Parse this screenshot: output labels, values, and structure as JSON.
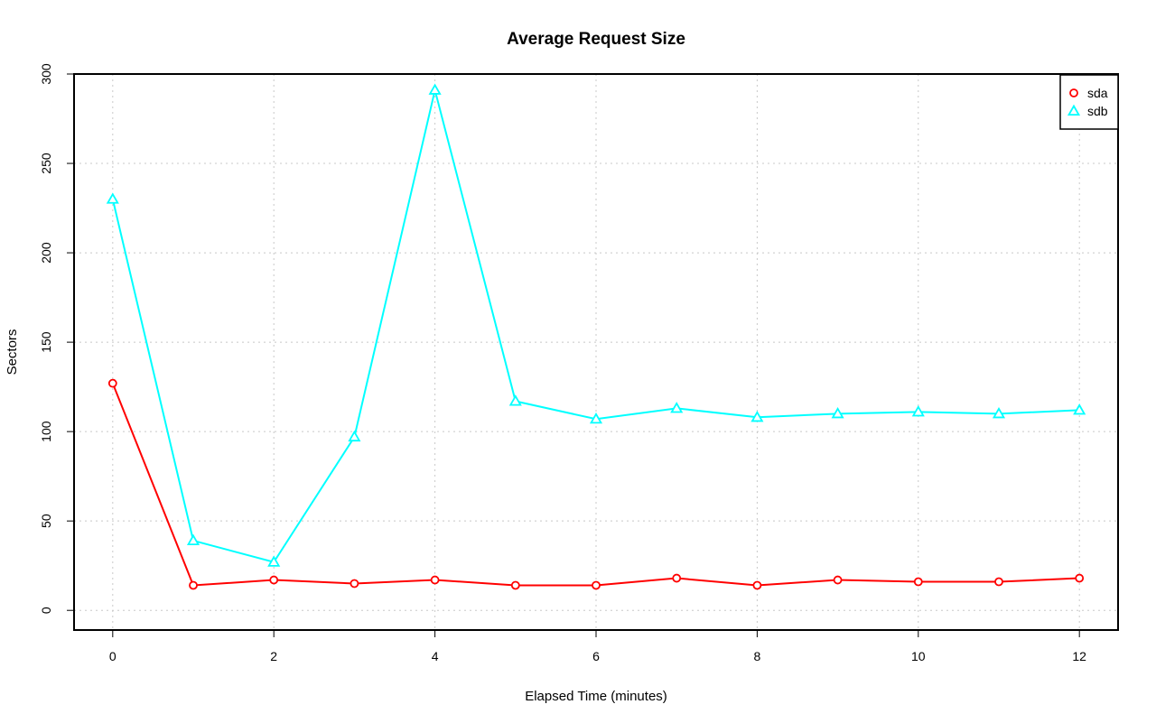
{
  "chart_data": {
    "type": "line",
    "title": "Average Request Size",
    "xlabel": "Elapsed Time (minutes)",
    "ylabel": "Sectors",
    "x": [
      0,
      1,
      2,
      3,
      4,
      5,
      6,
      7,
      8,
      9,
      10,
      11,
      12
    ],
    "xlim": [
      -0.48,
      12.48
    ],
    "ylim": [
      -11,
      300
    ],
    "x_ticks": [
      0,
      2,
      4,
      6,
      8,
      10,
      12
    ],
    "y_ticks": [
      0,
      50,
      100,
      150,
      200,
      250,
      300
    ],
    "grid": true,
    "legend_position": "top-right",
    "series": [
      {
        "name": "sda",
        "color": "#ff0000",
        "marker": "circle",
        "values": [
          127,
          14,
          17,
          15,
          17,
          14,
          14,
          18,
          14,
          17,
          16,
          16,
          18
        ]
      },
      {
        "name": "sdb",
        "color": "#00ffff",
        "marker": "triangle",
        "values": [
          230,
          39,
          27,
          97,
          291,
          117,
          107,
          113,
          108,
          110,
          111,
          110,
          112
        ]
      }
    ]
  }
}
